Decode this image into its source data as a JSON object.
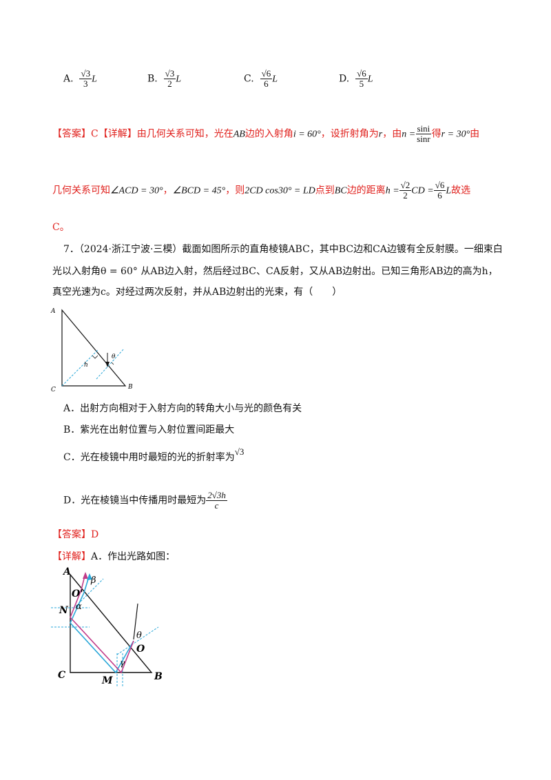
{
  "q6_options": [
    {
      "letter": "A.",
      "num": "√3",
      "den": "3",
      "var": "L"
    },
    {
      "letter": "B.",
      "num": "√3",
      "den": "2",
      "var": "L"
    },
    {
      "letter": "C.",
      "num": "√6",
      "den": "6",
      "var": "L"
    },
    {
      "letter": "D.",
      "num": "√6",
      "den": "5",
      "var": "L"
    }
  ],
  "q6_answer": {
    "bracket_answer": "【答案】C",
    "bracket_detail": "【详解】",
    "line1_a": "由几何关系可知，光在",
    "AB": "AB",
    "line1_b": "边的入射角",
    "i_eq": "i = 60°",
    "line1_c": "，设折射角为",
    "r": "r",
    "line1_d": "，由",
    "n_eq": "n =",
    "n_num": "sini",
    "n_den": "sinr",
    "line1_e": "得",
    "r_eq": "r = 30°",
    "line1_f": "由",
    "line2_a": "几何关系可知",
    "acd": "∠ACD = 30°",
    "sep": "，",
    "bcd": "∠BCD = 45°",
    "line2_b": "，则",
    "cos_expr": "2CD cos30° = L",
    "D": "D",
    "line2_c": "点到",
    "BC": "BC",
    "line2_d": "边的距离",
    "h_eq": "h =",
    "h_f1_num": "√2",
    "h_f1_den": "2",
    "h_mid": "CD =",
    "h_f2_num": "√6",
    "h_f2_den": "6",
    "h_L": "L",
    "line2_e": "故选",
    "line3": "C。"
  },
  "q7": {
    "line1": "7．（2024·浙江宁波·三模）截面如图所示的直角棱镜ABC，其中BC边和CA边镀有全反射膜。一细束白",
    "line2": "光以入射角θ = 60° 从AB边入射，然后经过BC、CA反射，又从AB边射出。已知三角形AB边的高为h，",
    "line3": "真空光速为c。对经过两次反射，并从AB边射出的光束，有（　　）",
    "options": {
      "A": "A．出射方向相对于入射方向的转角大小与光的颜色有关",
      "B": "B．紫光在出射位置与入射位置间距最大",
      "C": "C．光在棱镜中用时最短的光的折射率为",
      "C_val": "√3",
      "D": "D．光在棱镜当中传播用时最短为",
      "D_num": "2√3h",
      "D_den": "c"
    },
    "fig1_labels": {
      "A": "A",
      "B": "B",
      "C": "C",
      "h": "h",
      "theta": "θ"
    },
    "answer": "【答案】D",
    "detail_a": "【详解】",
    "detail_b": "A．作出光路如图：",
    "fig2_labels": {
      "A": "A",
      "B": "B",
      "C": "C",
      "M": "M",
      "N": "N",
      "O": "O",
      "O2": "O'",
      "alpha": "α",
      "beta": "β",
      "gamma": "γ",
      "theta": "θ"
    }
  },
  "colors": {
    "red": "#e0201c",
    "cyan": "#2aa7d8",
    "magenta": "#c13c8a"
  }
}
